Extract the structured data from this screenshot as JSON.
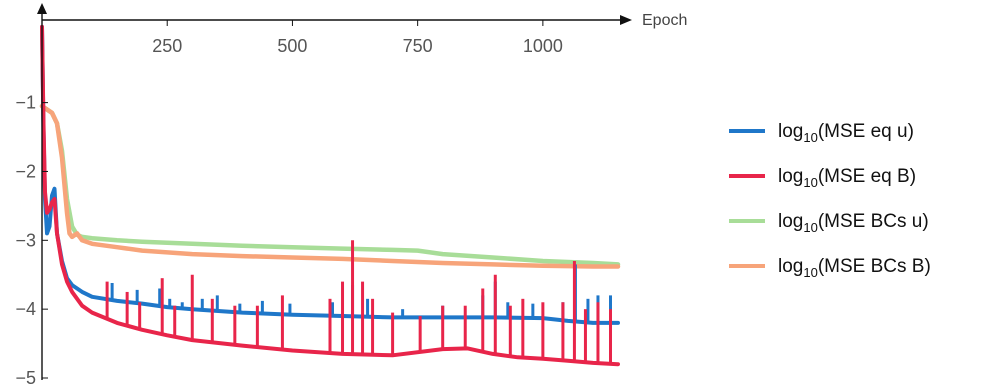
{
  "chart_data": {
    "type": "line",
    "title": "",
    "xlabel": "Epoch",
    "ylabel": "",
    "xlim": [
      0,
      1150
    ],
    "ylim": [
      -5,
      0.2
    ],
    "x_ticks": [
      250,
      500,
      750,
      1000
    ],
    "y_ticks": [
      -1,
      -2,
      -3,
      -4,
      -5
    ],
    "grid": false,
    "legend_position": "right",
    "legend_entries": [
      {
        "prefix": "log",
        "sub": "10",
        "rest": "(MSE eq u)"
      },
      {
        "prefix": "log",
        "sub": "10",
        "rest": "(MSE eq B)"
      },
      {
        "prefix": "log",
        "sub": "10",
        "rest": "(MSE BCs u)"
      },
      {
        "prefix": "log",
        "sub": "10",
        "rest": "(MSE BCs B)"
      }
    ],
    "series": [
      {
        "color": "#1F77C9",
        "x": [
          0,
          3,
          6,
          10,
          15,
          20,
          25,
          30,
          40,
          50,
          60,
          80,
          100,
          150,
          200,
          250,
          300,
          400,
          500,
          600,
          700,
          750,
          800,
          900,
          1000,
          1050,
          1100,
          1150
        ],
        "y": [
          0.1,
          -1.4,
          -2.4,
          -2.9,
          -2.8,
          -2.35,
          -2.25,
          -2.9,
          -3.3,
          -3.55,
          -3.65,
          -3.75,
          -3.82,
          -3.88,
          -3.92,
          -3.97,
          -4.0,
          -4.05,
          -4.08,
          -4.1,
          -4.12,
          -4.12,
          -4.12,
          -4.12,
          -4.13,
          -4.17,
          -4.2,
          -4.2
        ],
        "spikes": [
          {
            "x": 140,
            "y": -3.62
          },
          {
            "x": 190,
            "y": -3.72
          },
          {
            "x": 235,
            "y": -3.7
          },
          {
            "x": 255,
            "y": -3.85
          },
          {
            "x": 280,
            "y": -3.9
          },
          {
            "x": 320,
            "y": -3.85
          },
          {
            "x": 350,
            "y": -3.8
          },
          {
            "x": 395,
            "y": -3.92
          },
          {
            "x": 440,
            "y": -3.88
          },
          {
            "x": 495,
            "y": -3.92
          },
          {
            "x": 580,
            "y": -3.9
          },
          {
            "x": 620,
            "y": -3.65
          },
          {
            "x": 650,
            "y": -3.85
          },
          {
            "x": 720,
            "y": -4.0
          },
          {
            "x": 800,
            "y": -3.95
          },
          {
            "x": 880,
            "y": -3.8
          },
          {
            "x": 905,
            "y": -3.6
          },
          {
            "x": 930,
            "y": -3.9
          },
          {
            "x": 980,
            "y": -3.92
          },
          {
            "x": 1040,
            "y": -3.9
          },
          {
            "x": 1065,
            "y": -3.35
          },
          {
            "x": 1090,
            "y": -3.85
          },
          {
            "x": 1110,
            "y": -3.8
          },
          {
            "x": 1135,
            "y": -3.8
          }
        ]
      },
      {
        "color": "#E8254A",
        "x": [
          0,
          3,
          6,
          10,
          15,
          20,
          25,
          30,
          40,
          50,
          60,
          80,
          100,
          150,
          200,
          250,
          300,
          400,
          500,
          600,
          700,
          800,
          850,
          900,
          950,
          1000,
          1050,
          1100,
          1150
        ],
        "y": [
          0.1,
          -1.3,
          -2.3,
          -2.6,
          -2.55,
          -2.45,
          -2.4,
          -2.9,
          -3.35,
          -3.6,
          -3.75,
          -3.95,
          -4.05,
          -4.2,
          -4.3,
          -4.38,
          -4.45,
          -4.53,
          -4.6,
          -4.65,
          -4.67,
          -4.58,
          -4.57,
          -4.65,
          -4.7,
          -4.72,
          -4.75,
          -4.78,
          -4.8
        ],
        "spikes": [
          {
            "x": 130,
            "y": -3.6
          },
          {
            "x": 170,
            "y": -3.75
          },
          {
            "x": 195,
            "y": -3.9
          },
          {
            "x": 240,
            "y": -3.55
          },
          {
            "x": 265,
            "y": -3.95
          },
          {
            "x": 300,
            "y": -3.5
          },
          {
            "x": 340,
            "y": -3.85
          },
          {
            "x": 385,
            "y": -3.95
          },
          {
            "x": 430,
            "y": -3.95
          },
          {
            "x": 480,
            "y": -3.8
          },
          {
            "x": 575,
            "y": -3.85
          },
          {
            "x": 600,
            "y": -3.6
          },
          {
            "x": 620,
            "y": -3.0
          },
          {
            "x": 640,
            "y": -3.6
          },
          {
            "x": 660,
            "y": -3.85
          },
          {
            "x": 700,
            "y": -4.05
          },
          {
            "x": 755,
            "y": -4.1
          },
          {
            "x": 800,
            "y": -3.95
          },
          {
            "x": 845,
            "y": -3.95
          },
          {
            "x": 880,
            "y": -3.7
          },
          {
            "x": 905,
            "y": -3.5
          },
          {
            "x": 935,
            "y": -3.95
          },
          {
            "x": 960,
            "y": -3.85
          },
          {
            "x": 1000,
            "y": -3.9
          },
          {
            "x": 1040,
            "y": -3.9
          },
          {
            "x": 1063,
            "y": -3.3
          },
          {
            "x": 1085,
            "y": -4.0
          },
          {
            "x": 1110,
            "y": -3.9
          },
          {
            "x": 1135,
            "y": -4.0
          }
        ]
      },
      {
        "color": "#A8DD98",
        "x": [
          0,
          10,
          20,
          30,
          40,
          50,
          60,
          70,
          80,
          100,
          150,
          200,
          300,
          400,
          500,
          600,
          700,
          750,
          800,
          900,
          1000,
          1100,
          1150
        ],
        "y": [
          -1.05,
          -1.1,
          -1.15,
          -1.3,
          -1.7,
          -2.4,
          -2.8,
          -2.92,
          -2.95,
          -2.97,
          -3.0,
          -3.02,
          -3.05,
          -3.08,
          -3.1,
          -3.12,
          -3.14,
          -3.15,
          -3.2,
          -3.25,
          -3.3,
          -3.33,
          -3.35
        ]
      },
      {
        "color": "#F7A47A",
        "x": [
          0,
          10,
          20,
          30,
          40,
          50,
          55,
          60,
          70,
          80,
          100,
          150,
          200,
          300,
          400,
          500,
          600,
          700,
          800,
          900,
          1000,
          1100,
          1150
        ],
        "y": [
          -1.05,
          -1.1,
          -1.15,
          -1.3,
          -1.8,
          -2.6,
          -2.9,
          -2.95,
          -2.9,
          -3.0,
          -3.05,
          -3.1,
          -3.15,
          -3.2,
          -3.23,
          -3.25,
          -3.27,
          -3.3,
          -3.33,
          -3.35,
          -3.37,
          -3.38,
          -3.38
        ]
      }
    ]
  }
}
